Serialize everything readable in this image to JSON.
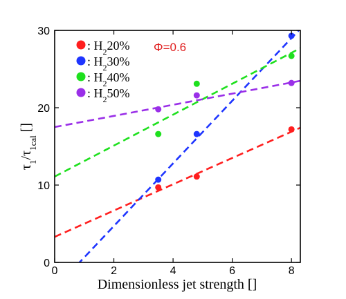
{
  "chart_data": {
    "type": "scatter",
    "xlabel": "Dimensionless jet strength []",
    "ylabel": {
      "main": "τ",
      "sub1": "1",
      "mid": "/τ",
      "sub2": "1cal",
      "tail": " []"
    },
    "xlim": [
      0,
      8.3
    ],
    "ylim": [
      0,
      30
    ],
    "xticks": [
      0,
      2,
      4,
      6,
      8
    ],
    "yticks": [
      0,
      10,
      20,
      30
    ],
    "grid": false,
    "legend_position": "top-left",
    "annotation": {
      "text": "Φ=0.6",
      "color": "#e02020"
    },
    "series": [
      {
        "name": "H₂20%",
        "legend_label": {
          "prefix": ": H",
          "sub": "2",
          "suffix": "20%"
        },
        "color": "#ff1e1e",
        "x": [
          3.5,
          4.8,
          8.0
        ],
        "y": [
          9.7,
          11.1,
          17.2
        ],
        "fit": {
          "intercept": 3.3,
          "slope": 1.7
        }
      },
      {
        "name": "H₂30%",
        "legend_label": {
          "prefix": ": H",
          "sub": "2",
          "suffix": "30%"
        },
        "color": "#1e35ff",
        "x": [
          3.5,
          4.8,
          8.0
        ],
        "y": [
          10.7,
          16.6,
          29.3
        ],
        "fit": {
          "intercept": -3.4,
          "slope": 4.05
        }
      },
      {
        "name": "H₂40%",
        "legend_label": {
          "prefix": ": H",
          "sub": "2",
          "suffix": "40%"
        },
        "color": "#1ee01e",
        "x": [
          3.5,
          4.8,
          8.0
        ],
        "y": [
          16.6,
          23.1,
          26.7
        ],
        "fit": {
          "intercept": 11.1,
          "slope": 2.0
        }
      },
      {
        "name": "H₂50%",
        "legend_label": {
          "prefix": ": H",
          "sub": "2",
          "suffix": "50%"
        },
        "color": "#9a2fe8",
        "x": [
          3.5,
          4.8,
          8.0
        ],
        "y": [
          19.8,
          21.6,
          23.2
        ],
        "fit": {
          "intercept": 17.5,
          "slope": 0.72
        }
      }
    ]
  }
}
